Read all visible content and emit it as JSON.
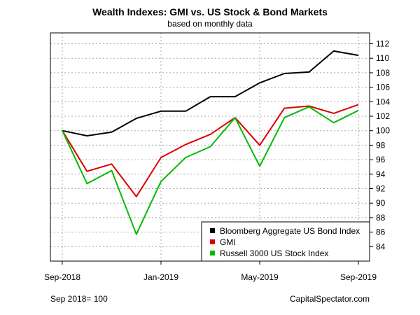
{
  "chart_data": {
    "type": "line",
    "title": "Wealth Indexes: GMI vs. US Stock & Bond Markets",
    "subtitle": "based on monthly data",
    "x": [
      "2018-09",
      "2018-10",
      "2018-11",
      "2018-12",
      "2019-01",
      "2019-02",
      "2019-03",
      "2019-04",
      "2019-05",
      "2019-06",
      "2019-07",
      "2019-08",
      "2019-09"
    ],
    "x_tick_labels": [
      {
        "at": "2018-09",
        "label": "Sep-2018"
      },
      {
        "at": "2019-01",
        "label": "Jan-2019"
      },
      {
        "at": "2019-05",
        "label": "May-2019"
      },
      {
        "at": "2019-09",
        "label": "Sep-2019"
      }
    ],
    "y_ticks": [
      84,
      86,
      88,
      90,
      92,
      94,
      96,
      98,
      100,
      102,
      104,
      106,
      108,
      110,
      112
    ],
    "ylim": [
      82,
      113.5
    ],
    "y_axis_side": "right",
    "grid": true,
    "legend_position": "bottom-right",
    "series": [
      {
        "name": "Bloomberg Aggregate US Bond Index",
        "color": "#000000",
        "values": [
          100.0,
          99.3,
          99.8,
          101.7,
          102.7,
          102.7,
          104.7,
          104.7,
          106.6,
          107.9,
          108.1,
          111.0,
          110.4
        ]
      },
      {
        "name": "GMI",
        "color": "#dd0000",
        "values": [
          100.0,
          94.4,
          95.4,
          90.9,
          96.3,
          98.1,
          99.5,
          101.8,
          98.0,
          103.1,
          103.4,
          102.4,
          103.6
        ]
      },
      {
        "name": "Russell 3000 US Stock Index",
        "color": "#00bb00",
        "values": [
          100.0,
          92.7,
          94.5,
          85.7,
          93.0,
          96.3,
          97.8,
          101.8,
          95.1,
          101.8,
          103.3,
          101.1,
          102.8
        ]
      }
    ],
    "footnote_left": "Sep 2018= 100",
    "footnote_right": "CapitalSpectator.com"
  }
}
